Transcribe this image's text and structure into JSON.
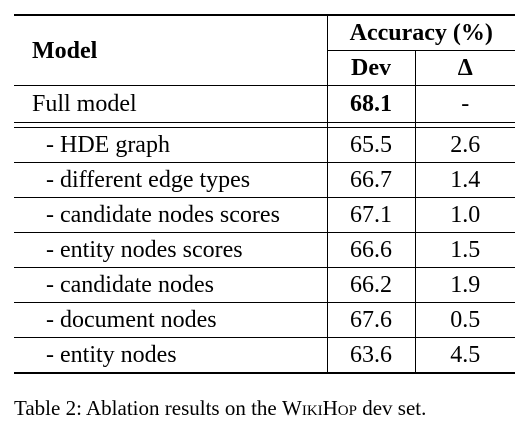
{
  "table": {
    "header": {
      "model": "Model",
      "group": "Accuracy (%)",
      "dev": "Dev",
      "delta": "Δ"
    },
    "full_model": {
      "name": "Full model",
      "dev": "68.1",
      "delta": "-"
    },
    "ablations": [
      {
        "name": "- HDE graph",
        "dev": "65.5",
        "delta": "2.6"
      },
      {
        "name": "- different edge types",
        "dev": "66.7",
        "delta": "1.4"
      },
      {
        "name": "- candidate nodes scores",
        "dev": "67.1",
        "delta": "1.0"
      },
      {
        "name": "- entity nodes scores",
        "dev": "66.6",
        "delta": "1.5"
      },
      {
        "name": "- candidate nodes",
        "dev": "66.2",
        "delta": "1.9"
      },
      {
        "name": "- document nodes",
        "dev": "67.6",
        "delta": "0.5"
      },
      {
        "name": "- entity nodes",
        "dev": "63.6",
        "delta": "4.5"
      }
    ]
  },
  "caption": {
    "prefix": "Table 2: Ablation results on the ",
    "dataset": "WikiHop",
    "suffix": " dev set."
  }
}
